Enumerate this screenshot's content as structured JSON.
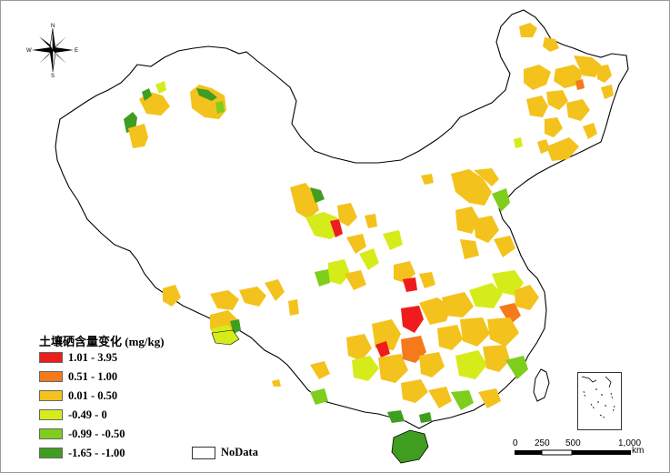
{
  "legend": {
    "title": "土壤硒含量变化 (mg/kg)",
    "classes": [
      {
        "label": "1.01 - 3.95",
        "color": "#ee1c1c"
      },
      {
        "label": "0.51 - 1.00",
        "color": "#f47a1c"
      },
      {
        "label": "0.01 - 0.50",
        "color": "#f4c21c"
      },
      {
        "label": "-0.49 - 0",
        "color": "#d6ec1a"
      },
      {
        "label": "-0.99 - -0.50",
        "color": "#7fcd1c"
      },
      {
        "label": "-1.65 - -1.00",
        "color": "#3f9e20"
      }
    ],
    "nodata_label": "NoData"
  },
  "scale_bar": {
    "ticks": [
      "0",
      "250",
      "500",
      "1,000"
    ],
    "unit": "km"
  },
  "compass": {
    "n": "N",
    "s": "S",
    "e": "E",
    "w": "W"
  }
}
